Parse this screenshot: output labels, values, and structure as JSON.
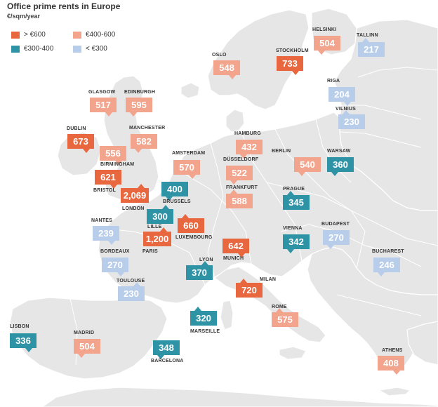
{
  "title": "Office prime rents in Europe",
  "subtitle": "€/sqm/year",
  "colors": {
    "high": "#e8673f",
    "upper_mid": "#f2a48c",
    "mid": "#2f93a6",
    "low": "#b7cdea",
    "land": "#e6e6e6",
    "sea": "#ffffff"
  },
  "legend": [
    {
      "label": "> €600",
      "tier": "high"
    },
    {
      "label": "€400-600",
      "tier": "upper_mid"
    },
    {
      "label": "€300-400",
      "tier": "mid"
    },
    {
      "label": "< €300",
      "tier": "low"
    }
  ],
  "cities": [
    {
      "name": "HELSINKI",
      "value": "504",
      "tier": "upper_mid"
    },
    {
      "name": "TALLINN",
      "value": "217",
      "tier": "low"
    },
    {
      "name": "OSLO",
      "value": "548",
      "tier": "upper_mid"
    },
    {
      "name": "STOCKHOLM",
      "value": "733",
      "tier": "high"
    },
    {
      "name": "RIGA",
      "value": "204",
      "tier": "low"
    },
    {
      "name": "VILNIUS",
      "value": "230",
      "tier": "low"
    },
    {
      "name": "GLASGOW",
      "value": "517",
      "tier": "upper_mid"
    },
    {
      "name": "EDINBURGH",
      "value": "595",
      "tier": "upper_mid"
    },
    {
      "name": "DUBLIN",
      "value": "673",
      "tier": "high"
    },
    {
      "name": "MANCHESTER",
      "value": "582",
      "tier": "upper_mid"
    },
    {
      "name": "",
      "value": "556",
      "tier": "upper_mid"
    },
    {
      "name": "HAMBURG",
      "value": "432",
      "tier": "upper_mid"
    },
    {
      "name": "AMSTERDAM",
      "value": "570",
      "tier": "upper_mid"
    },
    {
      "name": "DÜSSELDORF",
      "value": "522",
      "tier": "upper_mid"
    },
    {
      "name": "BERLIN",
      "value": "540",
      "tier": "upper_mid"
    },
    {
      "name": "WARSAW",
      "value": "360",
      "tier": "mid"
    },
    {
      "name": "BIRMINGHAM",
      "value": "621",
      "tier": "high"
    },
    {
      "name": "BRISTOL",
      "value": "",
      "tier": "high"
    },
    {
      "name": "LONDON",
      "value": "2,069",
      "tier": "high"
    },
    {
      "name": "BRUSSELS",
      "value": "400",
      "tier": "mid"
    },
    {
      "name": "FRANKFURT",
      "value": "588",
      "tier": "upper_mid"
    },
    {
      "name": "PRAGUE",
      "value": "345",
      "tier": "mid"
    },
    {
      "name": "NANTES",
      "value": "239",
      "tier": "low"
    },
    {
      "name": "LILLE",
      "value": "300",
      "tier": "mid"
    },
    {
      "name": "LUXEMBOURG",
      "value": "660",
      "tier": "high"
    },
    {
      "name": "PARIS",
      "value": "1,200",
      "tier": "high"
    },
    {
      "name": "VIENNA",
      "value": "342",
      "tier": "mid"
    },
    {
      "name": "BUDAPEST",
      "value": "270",
      "tier": "low"
    },
    {
      "name": "BORDEAUX",
      "value": "270",
      "tier": "low"
    },
    {
      "name": "MUNICH",
      "value": "642",
      "tier": "high"
    },
    {
      "name": "BUCHAREST",
      "value": "246",
      "tier": "low"
    },
    {
      "name": "LYON",
      "value": "370",
      "tier": "mid"
    },
    {
      "name": "TOULOUSE",
      "value": "230",
      "tier": "low"
    },
    {
      "name": "MILAN",
      "value": "720",
      "tier": "high"
    },
    {
      "name": "ROME",
      "value": "575",
      "tier": "upper_mid"
    },
    {
      "name": "MARSEILLE",
      "value": "320",
      "tier": "mid"
    },
    {
      "name": "LISBON",
      "value": "336",
      "tier": "mid"
    },
    {
      "name": "MADRID",
      "value": "504",
      "tier": "upper_mid"
    },
    {
      "name": "BARCELONA",
      "value": "348",
      "tier": "mid"
    },
    {
      "name": "ATHENS",
      "value": "408",
      "tier": "upper_mid"
    }
  ]
}
